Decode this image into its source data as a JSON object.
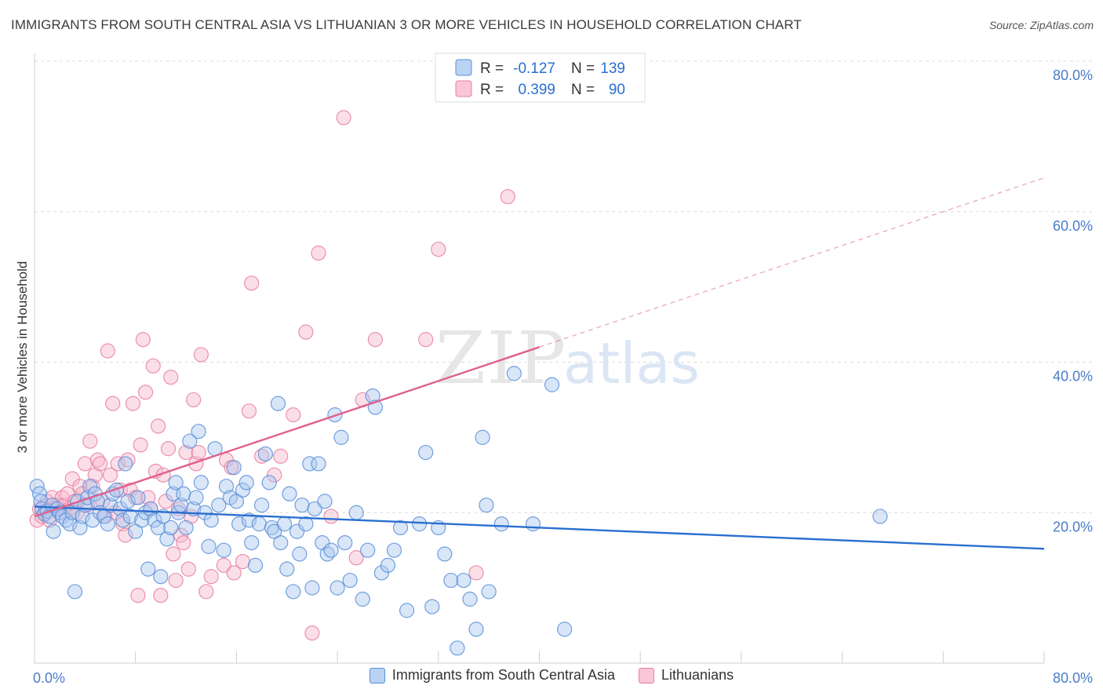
{
  "title": "IMMIGRANTS FROM SOUTH CENTRAL ASIA VS LITHUANIAN 3 OR MORE VEHICLES IN HOUSEHOLD CORRELATION CHART",
  "source": "Source: ZipAtlas.com",
  "watermark": {
    "zip": "ZIP",
    "atlas": "atlas"
  },
  "colors": {
    "blue_fill": "#a8c8f0",
    "blue_stroke": "#5a8fd8",
    "blue_line": "#2a6fd0",
    "pink_fill": "#f7b8cc",
    "pink_stroke": "#e87fa0",
    "pink_line": "#e0608e",
    "axis_label": "#4a7cc8"
  },
  "stats_legend": {
    "rows": [
      {
        "r_label": "R =",
        "r_value": "-0.127",
        "n_label": "N =",
        "n_value": "139",
        "series": "blue"
      },
      {
        "r_label": "R =",
        "r_value": "0.399",
        "n_label": "N =",
        "n_value": "90",
        "series": "pink"
      }
    ]
  },
  "chart_data": {
    "type": "scatter",
    "ylabel": "3 or more Vehicles in Household",
    "xlim": [
      0,
      80
    ],
    "ylim": [
      0,
      80
    ],
    "x_tick_labels": [
      "0.0%",
      "80.0%"
    ],
    "y_tick_labels": [
      "20.0%",
      "40.0%",
      "60.0%",
      "80.0%"
    ],
    "y_ticks": [
      20,
      40,
      60,
      80
    ],
    "grid": true,
    "series": [
      {
        "name": "Immigrants from South Central Asia",
        "color": "blue",
        "r": -0.127,
        "n": 139,
        "trend": {
          "x": [
            0,
            80
          ],
          "y": [
            20.8,
            15.2
          ],
          "dashed_from": null
        },
        "points": [
          [
            0.2,
            23.5
          ],
          [
            0.4,
            22.5
          ],
          [
            0.5,
            21.5
          ],
          [
            0.6,
            20.5
          ],
          [
            0.8,
            19.8
          ],
          [
            1.0,
            20.2
          ],
          [
            1.2,
            19.5
          ],
          [
            1.4,
            21.0
          ],
          [
            1.5,
            17.5
          ],
          [
            1.8,
            20.5
          ],
          [
            2.0,
            20.0
          ],
          [
            2.2,
            19.5
          ],
          [
            2.5,
            19.0
          ],
          [
            2.8,
            18.5
          ],
          [
            3.0,
            20.0
          ],
          [
            3.2,
            9.5
          ],
          [
            3.4,
            21.5
          ],
          [
            3.6,
            18.0
          ],
          [
            3.8,
            19.5
          ],
          [
            4.0,
            21.0
          ],
          [
            4.2,
            22.0
          ],
          [
            4.4,
            23.5
          ],
          [
            4.6,
            19.0
          ],
          [
            4.8,
            22.5
          ],
          [
            5.0,
            21.5
          ],
          [
            5.2,
            20.0
          ],
          [
            5.5,
            19.5
          ],
          [
            5.8,
            18.5
          ],
          [
            6.0,
            21.0
          ],
          [
            6.2,
            22.5
          ],
          [
            6.5,
            23.0
          ],
          [
            6.8,
            20.5
          ],
          [
            7.0,
            19.0
          ],
          [
            7.2,
            26.5
          ],
          [
            7.4,
            21.5
          ],
          [
            7.6,
            19.5
          ],
          [
            8.0,
            17.5
          ],
          [
            8.2,
            22.0
          ],
          [
            8.5,
            19.0
          ],
          [
            8.8,
            20.0
          ],
          [
            9.0,
            12.5
          ],
          [
            9.2,
            20.5
          ],
          [
            9.5,
            19.0
          ],
          [
            9.8,
            18.0
          ],
          [
            10.0,
            11.5
          ],
          [
            10.2,
            19.5
          ],
          [
            10.5,
            16.5
          ],
          [
            10.8,
            18.0
          ],
          [
            11.0,
            22.5
          ],
          [
            11.2,
            24.0
          ],
          [
            11.4,
            20.0
          ],
          [
            11.6,
            21.0
          ],
          [
            11.8,
            22.5
          ],
          [
            12.0,
            18.0
          ],
          [
            12.3,
            29.5
          ],
          [
            12.6,
            20.5
          ],
          [
            12.8,
            22.0
          ],
          [
            13.0,
            30.8
          ],
          [
            13.2,
            24.0
          ],
          [
            13.5,
            20.0
          ],
          [
            13.8,
            15.5
          ],
          [
            14.0,
            19.0
          ],
          [
            14.3,
            28.5
          ],
          [
            14.6,
            21.0
          ],
          [
            15.0,
            15.0
          ],
          [
            15.2,
            23.5
          ],
          [
            15.5,
            22.0
          ],
          [
            15.8,
            26.0
          ],
          [
            16.0,
            21.5
          ],
          [
            16.2,
            18.5
          ],
          [
            16.5,
            23.0
          ],
          [
            16.8,
            24.0
          ],
          [
            17.0,
            19.0
          ],
          [
            17.2,
            16.0
          ],
          [
            17.5,
            13.0
          ],
          [
            17.8,
            18.5
          ],
          [
            18.0,
            21.0
          ],
          [
            18.3,
            27.8
          ],
          [
            18.6,
            24.0
          ],
          [
            18.8,
            18.0
          ],
          [
            19.0,
            17.5
          ],
          [
            19.3,
            34.5
          ],
          [
            19.5,
            16.0
          ],
          [
            19.8,
            18.5
          ],
          [
            20.0,
            12.5
          ],
          [
            20.2,
            22.5
          ],
          [
            20.5,
            9.5
          ],
          [
            20.8,
            17.5
          ],
          [
            21.0,
            14.5
          ],
          [
            21.2,
            21.0
          ],
          [
            21.5,
            18.5
          ],
          [
            21.8,
            26.5
          ],
          [
            22.0,
            10.0
          ],
          [
            22.2,
            20.5
          ],
          [
            22.5,
            26.5
          ],
          [
            22.8,
            16.0
          ],
          [
            23.0,
            21.5
          ],
          [
            23.2,
            14.5
          ],
          [
            23.5,
            15.0
          ],
          [
            23.8,
            33.0
          ],
          [
            24.0,
            10.0
          ],
          [
            24.3,
            30.0
          ],
          [
            24.6,
            16.0
          ],
          [
            25.0,
            11.0
          ],
          [
            25.5,
            20.0
          ],
          [
            26.0,
            8.5
          ],
          [
            26.4,
            15.0
          ],
          [
            26.8,
            35.5
          ],
          [
            27.0,
            34.0
          ],
          [
            27.5,
            12.0
          ],
          [
            28.0,
            13.0
          ],
          [
            28.5,
            15.0
          ],
          [
            29.0,
            18.0
          ],
          [
            29.5,
            7.0
          ],
          [
            30.5,
            18.5
          ],
          [
            31.0,
            28.0
          ],
          [
            31.5,
            7.5
          ],
          [
            32.0,
            18.0
          ],
          [
            32.5,
            14.5
          ],
          [
            33.0,
            11.0
          ],
          [
            33.5,
            2.0
          ],
          [
            34.0,
            11.0
          ],
          [
            34.5,
            8.5
          ],
          [
            35.0,
            4.5
          ],
          [
            35.5,
            30.0
          ],
          [
            35.8,
            21.0
          ],
          [
            36.0,
            9.5
          ],
          [
            37.0,
            18.5
          ],
          [
            38.0,
            38.5
          ],
          [
            39.5,
            18.5
          ],
          [
            41.0,
            37.0
          ],
          [
            42.0,
            4.5
          ],
          [
            67.0,
            19.5
          ]
        ]
      },
      {
        "name": "Lithuanians",
        "color": "pink",
        "r": 0.399,
        "n": 90,
        "trend": {
          "x": [
            0,
            40,
            80
          ],
          "y": [
            19.5,
            42.0,
            64.5
          ],
          "dashed_from": 40
        },
        "points": [
          [
            0.2,
            19.0
          ],
          [
            0.4,
            20.5
          ],
          [
            0.6,
            19.5
          ],
          [
            0.8,
            20.0
          ],
          [
            1.0,
            21.5
          ],
          [
            1.2,
            19.0
          ],
          [
            1.4,
            22.0
          ],
          [
            1.6,
            20.5
          ],
          [
            1.8,
            21.0
          ],
          [
            2.0,
            20.0
          ],
          [
            2.2,
            22.0
          ],
          [
            2.4,
            21.0
          ],
          [
            2.6,
            22.5
          ],
          [
            2.8,
            20.5
          ],
          [
            3.0,
            24.5
          ],
          [
            3.2,
            21.5
          ],
          [
            3.4,
            20.0
          ],
          [
            3.6,
            23.5
          ],
          [
            3.8,
            22.5
          ],
          [
            4.0,
            26.5
          ],
          [
            4.2,
            21.0
          ],
          [
            4.4,
            29.5
          ],
          [
            4.6,
            23.5
          ],
          [
            4.8,
            25.0
          ],
          [
            5.0,
            27.0
          ],
          [
            5.2,
            26.5
          ],
          [
            5.4,
            21.5
          ],
          [
            5.6,
            19.5
          ],
          [
            5.8,
            41.5
          ],
          [
            6.0,
            25.0
          ],
          [
            6.2,
            34.5
          ],
          [
            6.4,
            20.0
          ],
          [
            6.6,
            26.5
          ],
          [
            6.8,
            23.0
          ],
          [
            7.0,
            18.5
          ],
          [
            7.2,
            17.0
          ],
          [
            7.4,
            27.0
          ],
          [
            7.6,
            23.0
          ],
          [
            7.8,
            34.5
          ],
          [
            8.0,
            22.0
          ],
          [
            8.2,
            9.0
          ],
          [
            8.4,
            29.0
          ],
          [
            8.6,
            43.0
          ],
          [
            8.8,
            36.0
          ],
          [
            9.0,
            22.0
          ],
          [
            9.2,
            20.5
          ],
          [
            9.4,
            39.5
          ],
          [
            9.6,
            25.5
          ],
          [
            9.8,
            31.5
          ],
          [
            10.0,
            9.0
          ],
          [
            10.2,
            25.0
          ],
          [
            10.4,
            21.5
          ],
          [
            10.6,
            28.5
          ],
          [
            10.8,
            38.0
          ],
          [
            11.0,
            14.5
          ],
          [
            11.2,
            11.0
          ],
          [
            11.4,
            20.5
          ],
          [
            11.6,
            17.0
          ],
          [
            11.8,
            16.0
          ],
          [
            12.0,
            28.0
          ],
          [
            12.2,
            12.5
          ],
          [
            12.4,
            19.5
          ],
          [
            12.6,
            35.0
          ],
          [
            12.8,
            26.5
          ],
          [
            13.0,
            28.0
          ],
          [
            13.2,
            41.0
          ],
          [
            13.6,
            9.5
          ],
          [
            14.0,
            11.5
          ],
          [
            15.0,
            13.0
          ],
          [
            15.2,
            27.0
          ],
          [
            15.6,
            26.0
          ],
          [
            15.8,
            12.0
          ],
          [
            16.5,
            13.5
          ],
          [
            17.0,
            33.5
          ],
          [
            17.2,
            50.5
          ],
          [
            18.0,
            27.5
          ],
          [
            19.0,
            25.0
          ],
          [
            19.5,
            27.5
          ],
          [
            20.5,
            33.0
          ],
          [
            21.5,
            44.0
          ],
          [
            22.0,
            4.0
          ],
          [
            22.5,
            54.5
          ],
          [
            23.5,
            19.5
          ],
          [
            24.5,
            72.5
          ],
          [
            25.5,
            14.0
          ],
          [
            26.0,
            35.0
          ],
          [
            27.0,
            43.0
          ],
          [
            31.0,
            43.0
          ],
          [
            32.0,
            55.0
          ],
          [
            35.0,
            12.0
          ],
          [
            37.5,
            62.0
          ]
        ]
      }
    ]
  }
}
